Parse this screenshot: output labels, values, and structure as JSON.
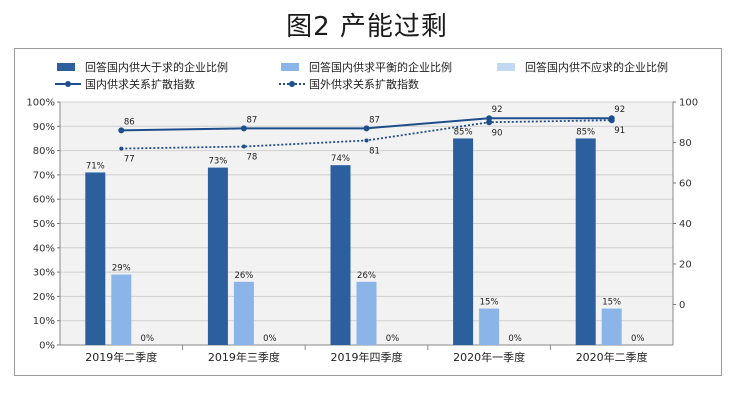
{
  "title": "图2  产能过剩",
  "chart_data": {
    "type": "bar",
    "categories": [
      "2019年二季度",
      "2019年三季度",
      "2019年四季度",
      "2020年一季度",
      "2020年二季度"
    ],
    "series": [
      {
        "name": "回答国内供大于求的企业比例",
        "type": "bar",
        "axis": "left",
        "color": "#2b5f9e",
        "values": [
          71,
          73,
          74,
          85,
          85
        ],
        "labels": [
          "71%",
          "73%",
          "74%",
          "85%",
          "85%"
        ]
      },
      {
        "name": "回答国内供求平衡的企业比例",
        "type": "bar",
        "axis": "left",
        "color": "#8bb4e8",
        "values": [
          29,
          26,
          26,
          15,
          15
        ],
        "labels": [
          "29%",
          "26%",
          "26%",
          "15%",
          "15%"
        ]
      },
      {
        "name": "回答国内供不应求的企业比例",
        "type": "bar",
        "axis": "left",
        "color": "#c3d8f2",
        "values": [
          0,
          0,
          0,
          0,
          0
        ],
        "labels": [
          "0%",
          "0%",
          "0%",
          "0%",
          "0%"
        ]
      },
      {
        "name": "国内供求关系扩散指数",
        "type": "line",
        "style": "solid",
        "axis": "right",
        "color": "#1f4e8c",
        "values": [
          86,
          87,
          87,
          92,
          92
        ],
        "labels": [
          "86",
          "87",
          "87",
          "92",
          "92"
        ]
      },
      {
        "name": "国外供求关系扩散指数",
        "type": "line",
        "style": "dotted",
        "axis": "right",
        "color": "#1f4e8c",
        "values": [
          77,
          78,
          81,
          90,
          91
        ],
        "labels": [
          "77",
          "78",
          "81",
          "90",
          "91"
        ]
      }
    ],
    "y_left": {
      "min": 0,
      "max": 100,
      "ticks": [
        "0%",
        "10%",
        "20%",
        "30%",
        "40%",
        "50%",
        "60%",
        "70%",
        "80%",
        "90%",
        "100%"
      ]
    },
    "y_right": {
      "min": -20,
      "max": 100,
      "ticks": [
        "0",
        "20",
        "40",
        "60",
        "80",
        "100"
      ],
      "tick_values": [
        0,
        20,
        40,
        60,
        80,
        100
      ]
    },
    "grid": true,
    "legend": "top"
  }
}
